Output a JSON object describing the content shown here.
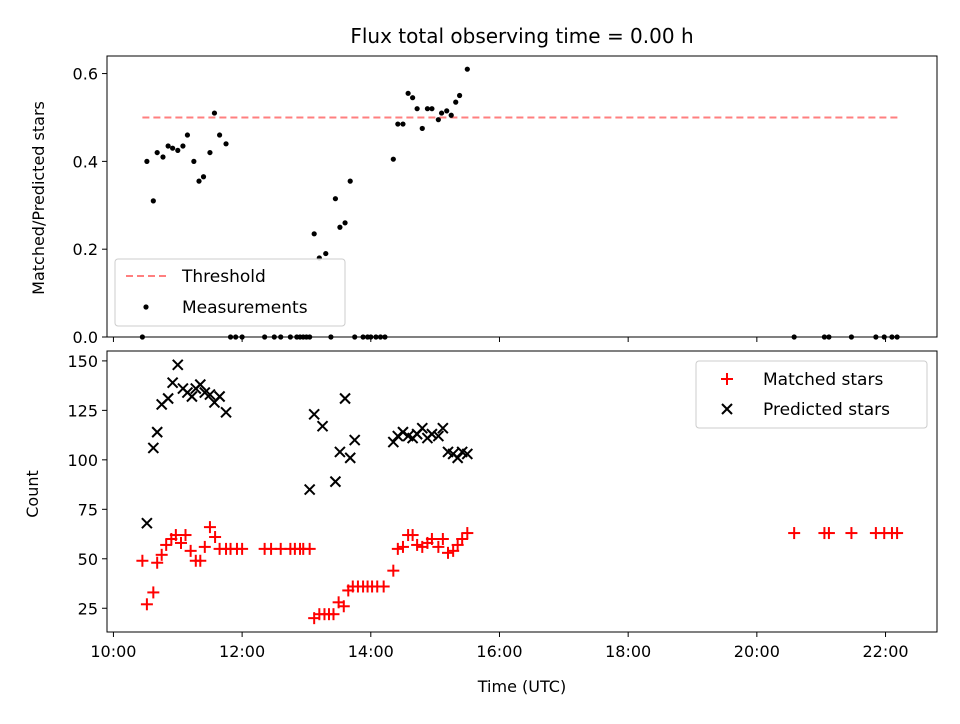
{
  "chart_data": [
    {
      "type": "scatter",
      "title": "Flux total observing time = 0.00 h",
      "xlabel": "",
      "ylabel": "Matched/Predicted stars",
      "xlim": [
        9.9,
        22.8
      ],
      "ylim": [
        0.0,
        0.64
      ],
      "yticks": [
        0.0,
        0.2,
        0.4,
        0.6
      ],
      "ytick_labels": [
        "0.0",
        "0.2",
        "0.4",
        "0.6"
      ],
      "xticks": [
        10,
        12,
        14,
        16,
        18,
        20,
        22
      ],
      "grid": false,
      "legend_position": "lower-left",
      "series": [
        {
          "name": "Threshold",
          "kind": "dashed-line",
          "color": "#ff7f7f",
          "x": [
            10.45,
            22.2
          ],
          "y": [
            0.5,
            0.5
          ]
        },
        {
          "name": "Measurements",
          "kind": "dots",
          "color": "#000000",
          "x": [
            10.45,
            10.52,
            10.62,
            10.68,
            10.77,
            10.85,
            10.92,
            11.0,
            11.08,
            11.15,
            11.25,
            11.33,
            11.4,
            11.5,
            11.57,
            11.65,
            11.75,
            11.82,
            11.9,
            12.0,
            12.35,
            12.5,
            12.6,
            12.75,
            12.85,
            12.9,
            12.95,
            13.0,
            13.05,
            13.12,
            13.2,
            13.3,
            13.38,
            13.45,
            13.52,
            13.6,
            13.68,
            13.75,
            13.88,
            13.95,
            14.0,
            14.08,
            14.15,
            14.22,
            14.35,
            14.42,
            14.5,
            14.58,
            14.65,
            14.72,
            14.8,
            14.88,
            14.95,
            15.05,
            15.1,
            15.18,
            15.25,
            15.32,
            15.38,
            15.5
          ],
          "y": [
            0.0,
            0.4,
            0.31,
            0.42,
            0.41,
            0.435,
            0.43,
            0.425,
            0.435,
            0.46,
            0.4,
            0.355,
            0.365,
            0.42,
            0.51,
            0.46,
            0.44,
            0.0,
            0.0,
            0.0,
            0.0,
            0.0,
            0.0,
            0.0,
            0.0,
            0.0,
            0.0,
            0.0,
            0.0,
            0.235,
            0.18,
            0.19,
            0.0,
            0.315,
            0.25,
            0.26,
            0.355,
            0.0,
            0.0,
            0.0,
            0.0,
            0.0,
            0.0,
            0.0,
            0.405,
            0.485,
            0.485,
            0.555,
            0.545,
            0.52,
            0.475,
            0.52,
            0.52,
            0.495,
            0.51,
            0.515,
            0.505,
            0.535,
            0.55,
            0.61
          ]
        },
        {
          "name": "",
          "kind": "dots",
          "color": "#000000",
          "x": [
            20.58,
            21.05,
            21.12,
            21.47,
            21.85,
            21.98,
            22.1,
            22.18
          ],
          "y": [
            0.0,
            0.0,
            0.0,
            0.0,
            0.0,
            0.0,
            0.0,
            0.0
          ]
        }
      ]
    },
    {
      "type": "scatter",
      "title": "",
      "xlabel": "Time (UTC)",
      "ylabel": "Count",
      "xlim": [
        9.9,
        22.8
      ],
      "ylim": [
        13,
        155
      ],
      "yticks": [
        25,
        50,
        75,
        100,
        125,
        150
      ],
      "ytick_labels": [
        "25",
        "50",
        "75",
        "100",
        "125",
        "150"
      ],
      "xticks": [
        10,
        12,
        14,
        16,
        18,
        20,
        22
      ],
      "xtick_labels": [
        "10:00",
        "12:00",
        "14:00",
        "16:00",
        "18:00",
        "20:00",
        "22:00"
      ],
      "grid": false,
      "legend_position": "upper-right",
      "series": [
        {
          "name": "Matched stars",
          "marker": "plus",
          "color": "#ff0000",
          "x": [
            10.45,
            10.52,
            10.62,
            10.68,
            10.75,
            10.82,
            10.9,
            10.97,
            11.05,
            11.12,
            11.2,
            11.28,
            11.35,
            11.42,
            11.5,
            11.58,
            11.65,
            11.75,
            11.82,
            11.92,
            12.0,
            12.35,
            12.45,
            12.6,
            12.75,
            12.82,
            12.9,
            12.95,
            13.05,
            13.12,
            13.2,
            13.28,
            13.35,
            13.42,
            13.5,
            13.58,
            13.65,
            13.72,
            13.8,
            13.88,
            13.95,
            14.02,
            14.1,
            14.2,
            14.35,
            14.42,
            14.5,
            14.58,
            14.65,
            14.72,
            14.8,
            14.88,
            14.95,
            15.05,
            15.12,
            15.2,
            15.28,
            15.35,
            15.42,
            15.5,
            20.58,
            21.05,
            21.12,
            21.47,
            21.85,
            21.98,
            22.1,
            22.18
          ],
          "y": [
            49,
            27,
            33,
            48,
            52,
            57,
            60,
            62,
            58,
            62,
            54,
            49,
            49,
            56,
            66,
            61,
            55,
            55,
            55,
            55,
            55,
            55,
            55,
            55,
            55,
            55,
            55,
            55,
            55,
            20,
            22,
            22,
            22,
            22,
            28,
            26,
            34,
            36,
            36,
            36,
            36,
            36,
            36,
            36,
            44,
            55,
            56,
            62,
            62,
            57,
            56,
            58,
            60,
            56,
            60,
            53,
            54,
            57,
            60,
            63,
            63,
            63,
            63,
            63,
            63,
            63,
            63,
            63
          ]
        },
        {
          "name": "Predicted stars",
          "marker": "x",
          "color": "#000000",
          "x": [
            10.52,
            10.62,
            10.68,
            10.75,
            10.85,
            10.92,
            11.0,
            11.08,
            11.15,
            11.22,
            11.28,
            11.35,
            11.42,
            11.5,
            11.57,
            11.65,
            11.75,
            13.05,
            13.12,
            13.25,
            13.45,
            13.52,
            13.6,
            13.68,
            13.75,
            14.35,
            14.42,
            14.5,
            14.58,
            14.65,
            14.72,
            14.8,
            14.88,
            14.95,
            15.05,
            15.12,
            15.2,
            15.28,
            15.35,
            15.42,
            15.5
          ],
          "y": [
            68,
            106,
            114,
            128,
            131,
            139,
            148,
            136,
            134,
            132,
            136,
            138,
            134,
            133,
            129,
            132,
            124,
            85,
            123,
            117,
            89,
            104,
            131,
            101,
            110,
            109,
            112,
            114,
            112,
            111,
            113,
            116,
            111,
            113,
            112,
            116,
            104,
            103,
            101,
            104,
            103
          ]
        }
      ]
    }
  ],
  "colors": {
    "threshold": "#ff7f7f",
    "measurements": "#000000",
    "matched": "#ff0000",
    "predicted": "#000000"
  }
}
